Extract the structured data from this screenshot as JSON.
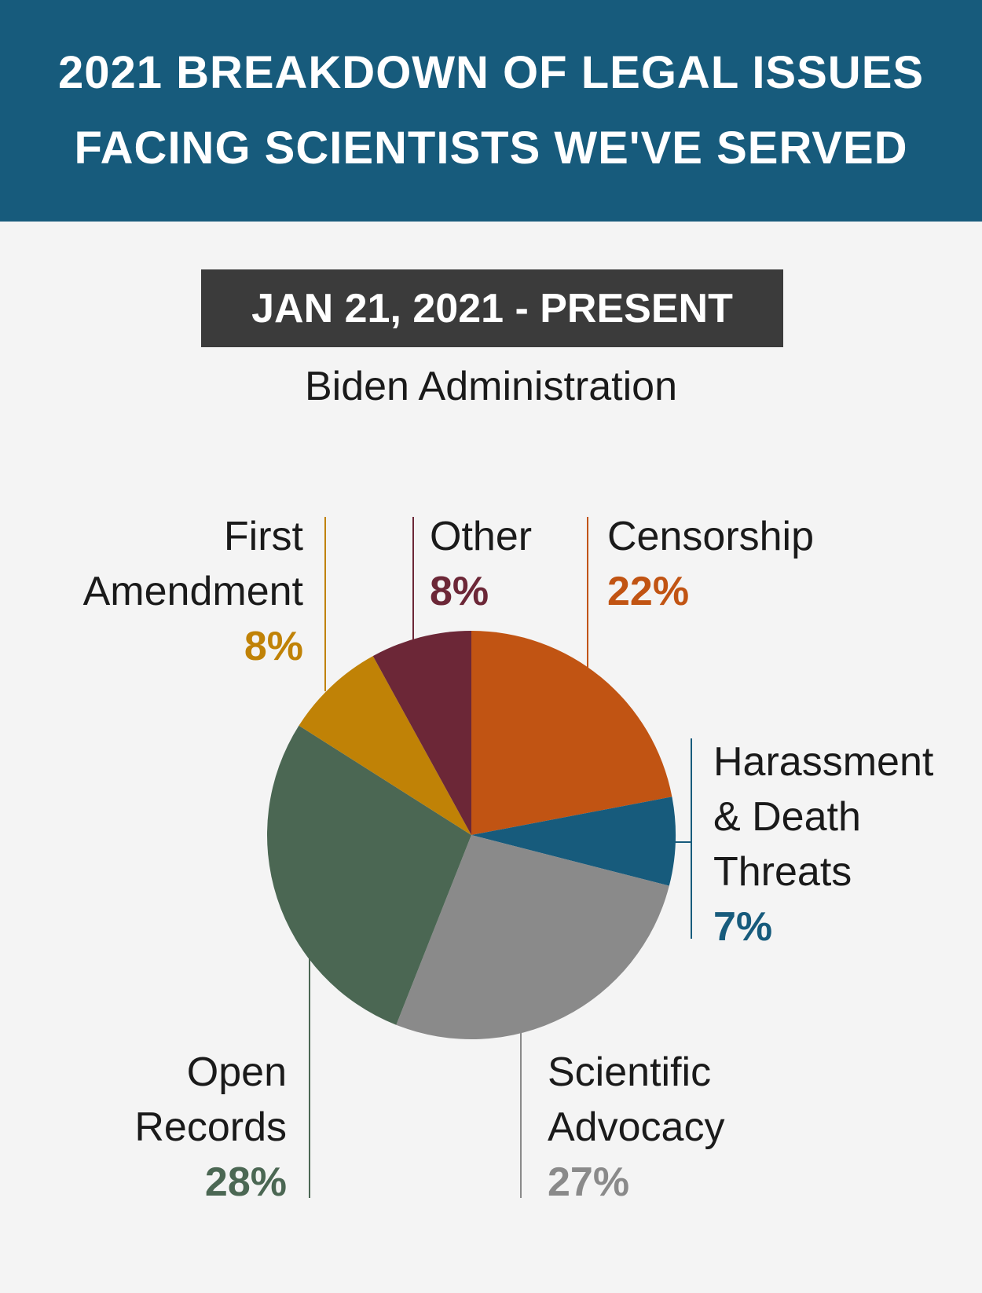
{
  "header": {
    "line1": "2021 BREAKDOWN OF LEGAL ISSUES",
    "line2": "FACING SCIENTISTS WE'VE SERVED"
  },
  "period": {
    "label": "JAN 21, 2021 - PRESENT",
    "subtitle": "Biden Administration"
  },
  "chart_data": {
    "type": "pie",
    "title": "2021 BREAKDOWN OF LEGAL ISSUES FACING SCIENTISTS WE'VE SERVED",
    "start_angle": "12 o'clock, clockwise",
    "slices": [
      {
        "label_lines": [
          "Censorship"
        ],
        "value": 22,
        "pct_label": "22%",
        "color": "#c15413"
      },
      {
        "label_lines": [
          "Harassment",
          "& Death",
          "Threats"
        ],
        "value": 7,
        "pct_label": "7%",
        "color": "#175b7c"
      },
      {
        "label_lines": [
          "Scientific",
          "Advocacy"
        ],
        "value": 27,
        "pct_label": "27%",
        "color": "#8a8a8a"
      },
      {
        "label_lines": [
          "Open",
          "Records"
        ],
        "value": 28,
        "pct_label": "28%",
        "color": "#4b6753"
      },
      {
        "label_lines": [
          "First",
          "Amendment"
        ],
        "value": 8,
        "pct_label": "8%",
        "color": "#c08206"
      },
      {
        "label_lines": [
          "Other"
        ],
        "value": 8,
        "pct_label": "8%",
        "color": "#6c2737"
      }
    ]
  }
}
